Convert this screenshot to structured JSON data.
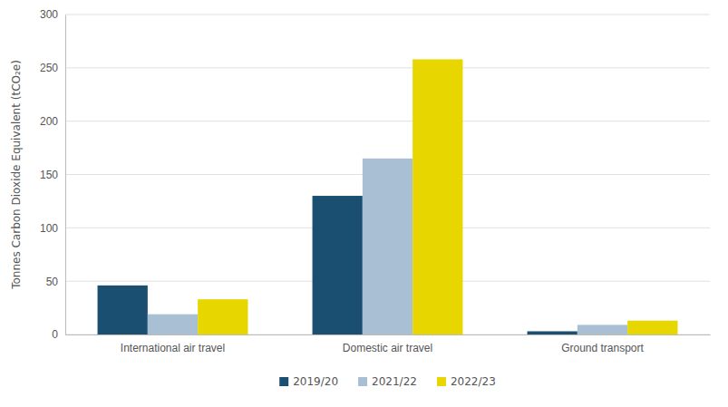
{
  "chart_data": {
    "type": "bar",
    "categories": [
      "International air travel",
      "Domestic air travel",
      "Ground transport"
    ],
    "series": [
      {
        "name": "2019/20",
        "color": "#1b4f72",
        "values": [
          46,
          130,
          3
        ]
      },
      {
        "name": "2021/22",
        "color": "#a8bfd4",
        "values": [
          19,
          165,
          9
        ]
      },
      {
        "name": "2022/23",
        "color": "#e8d600",
        "values": [
          33,
          258,
          13
        ]
      }
    ],
    "ylabel": "Tonnes Carbon Dioxide Equivalent (tCO₂e)",
    "ylim": [
      0,
      300
    ],
    "yticks": [
      0,
      50,
      100,
      150,
      200,
      250,
      300
    ],
    "grid": true,
    "legend": "bottom"
  }
}
